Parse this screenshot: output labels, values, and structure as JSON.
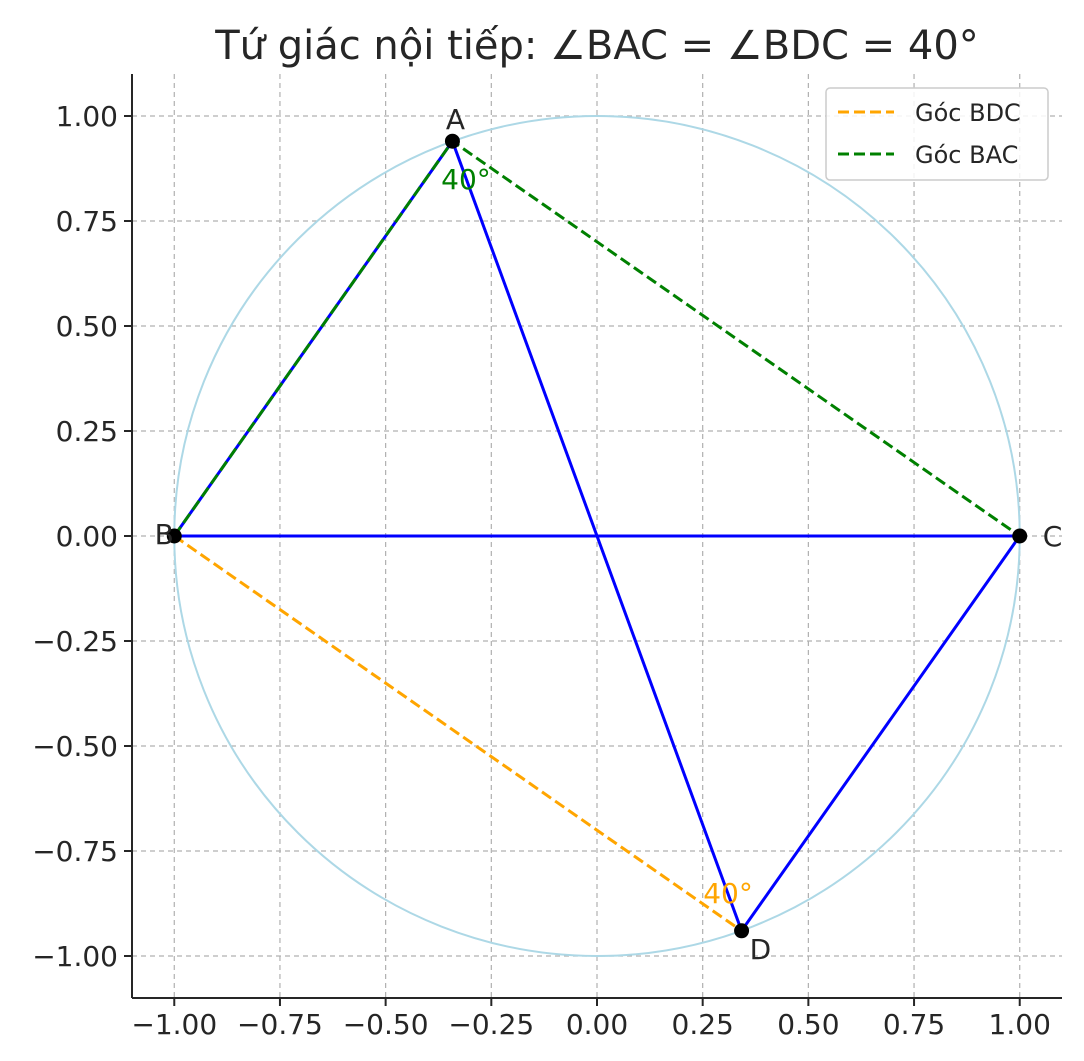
{
  "chart_data": {
    "type": "scatter",
    "title": "Tứ giác nội tiếp: ∠BAC = ∠BDC = 40°",
    "xlabel": "",
    "ylabel": "",
    "xlim": [
      -1.1,
      1.1
    ],
    "ylim": [
      -1.1,
      1.1
    ],
    "grid": true,
    "aspect": "equal",
    "xticks": [
      -1.0,
      -0.75,
      -0.5,
      -0.25,
      0.0,
      0.25,
      0.5,
      0.75,
      1.0
    ],
    "yticks": [
      -1.0,
      -0.75,
      -0.5,
      -0.25,
      0.0,
      0.25,
      0.5,
      0.75,
      1.0
    ],
    "xtick_labels": [
      "−1.00",
      "−0.75",
      "−0.50",
      "−0.25",
      "0.00",
      "0.25",
      "0.50",
      "0.75",
      "1.00"
    ],
    "ytick_labels": [
      "−1.00",
      "−0.75",
      "−0.50",
      "−0.25",
      "0.00",
      "0.25",
      "0.50",
      "0.75",
      "1.00"
    ],
    "circle": {
      "center": [
        0,
        0
      ],
      "radius": 1,
      "color": "#add8e6"
    },
    "points": [
      {
        "name": "A",
        "x": -0.342,
        "y": 0.94
      },
      {
        "name": "B",
        "x": -1.0,
        "y": 0.0
      },
      {
        "name": "C",
        "x": 1.0,
        "y": 0.0
      },
      {
        "name": "D",
        "x": 0.342,
        "y": -0.94
      }
    ],
    "segments": [
      {
        "from": "A",
        "to": "B",
        "color": "#0000ff",
        "style": "solid"
      },
      {
        "from": "A",
        "to": "D",
        "color": "#0000ff",
        "style": "solid"
      },
      {
        "from": "B",
        "to": "C",
        "color": "#0000ff",
        "style": "solid"
      },
      {
        "from": "D",
        "to": "C",
        "color": "#0000ff",
        "style": "solid"
      }
    ],
    "series": [
      {
        "name": "Góc BDC",
        "color": "#ffa500",
        "style": "dashed",
        "x": [
          -1.0,
          0.342
        ],
        "y": [
          0.0,
          -0.94
        ]
      },
      {
        "name": "Góc BAC",
        "color": "#008000",
        "style": "dashed",
        "x": [
          -1.0,
          -0.342,
          1.0
        ],
        "y": [
          0.0,
          0.94,
          0.0
        ]
      }
    ],
    "annotations": [
      {
        "text": "40°",
        "x": -0.31,
        "y": 0.85,
        "color": "#008000"
      },
      {
        "text": "40°",
        "x": 0.31,
        "y": -0.85,
        "color": "#ffa500"
      }
    ],
    "legend_position": "top-right"
  }
}
